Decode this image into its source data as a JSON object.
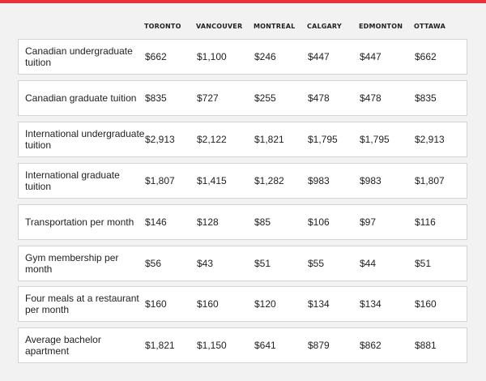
{
  "columns": [
    "TORONTO",
    "VANCOUVER",
    "MONTREAL",
    "CALGARY",
    "EDMONTON",
    "OTTAWA"
  ],
  "rows": [
    {
      "label": "Canadian undergraduate tuition",
      "values": [
        "$662",
        "$1,100",
        "$246",
        "$447",
        "$447",
        "$662"
      ]
    },
    {
      "label": "Canadian graduate tuition",
      "values": [
        "$835",
        "$727",
        "$255",
        "$478",
        "$478",
        "$835"
      ]
    },
    {
      "label": "International undergraduate tuition",
      "values": [
        "$2,913",
        "$2,122",
        "$1,821",
        "$1,795",
        "$1,795",
        "$2,913"
      ]
    },
    {
      "label": "International graduate tuition",
      "values": [
        "$1,807",
        "$1,415",
        "$1,282",
        "$983",
        "$983",
        "$1,807"
      ]
    },
    {
      "label": "Transportation per month",
      "values": [
        "$146",
        "$128",
        "$85",
        "$106",
        "$97",
        "$116"
      ]
    },
    {
      "label": "Gym membership per month",
      "values": [
        "$56",
        "$43",
        "$51",
        "$55",
        "$44",
        "$51"
      ]
    },
    {
      "label": "Four meals at a restaurant per month",
      "values": [
        "$160",
        "$160",
        "$120",
        "$134",
        "$134",
        "$160"
      ]
    },
    {
      "label": "Average bachelor apartment",
      "values": [
        "$1,821",
        "$1,150",
        "$641",
        "$879",
        "$862",
        "$881"
      ]
    }
  ]
}
